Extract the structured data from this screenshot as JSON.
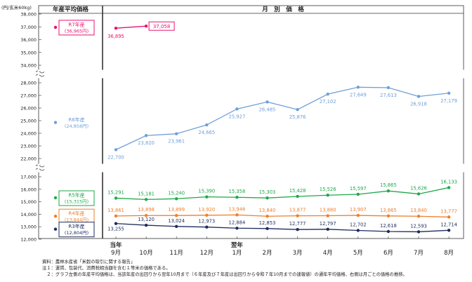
{
  "chart_data": {
    "type": "line",
    "ylabel": "(円/玄米60kg)",
    "left_header": "年産平均価格",
    "right_header": "月　別　価　格",
    "categories": [
      "9月",
      "10月",
      "11月",
      "12月",
      "1月",
      "2月",
      "3月",
      "4月",
      "5月",
      "6月",
      "7月",
      "8月"
    ],
    "year_labels": [
      {
        "text": "当年",
        "category_index": 0
      },
      {
        "text": "翌年",
        "category_index": 4
      }
    ],
    "axis_breaks": [
      {
        "ylim": [
          34000,
          38000
        ],
        "ticks": [
          34000,
          35000,
          36000,
          37000,
          38000
        ]
      },
      {
        "ylim": [
          22000,
          28000
        ],
        "ticks": [
          22000,
          23000,
          24000,
          25000,
          26000,
          27000,
          28000
        ]
      },
      {
        "ylim": [
          12000,
          17000
        ],
        "ticks": [
          12000,
          13000,
          14000,
          15000,
          16000,
          17000
        ]
      }
    ],
    "tick_labels": {
      "38000": "38,000",
      "37000": "37,000",
      "36000": "36,000",
      "35000": "35,000",
      "34000": "34,000",
      "28000": "28,000",
      "27000": "27,000",
      "26000": "26,000",
      "25000": "25,000",
      "24000": "24,000",
      "23000": "23,000",
      "22000": "22,000",
      "17000": "17,000",
      "16000": "16,000",
      "15000": "15,000",
      "14000": "14,000",
      "13000": "13,000",
      "12000": "12,000"
    },
    "series": [
      {
        "name": "R7年産",
        "avg_label": "(36,965円)",
        "avg": 36965,
        "color": "#e8136f",
        "values": [
          36895,
          37058,
          null,
          null,
          null,
          null,
          null,
          null,
          null,
          null,
          null,
          null
        ],
        "labels": [
          "36,895",
          "37,058",
          "",
          "",
          "",
          "",
          "",
          "",
          "",
          "",
          "",
          ""
        ],
        "boxed_labels": [
          1
        ]
      },
      {
        "name": "R6年産",
        "avg_label": "(24,858円)",
        "avg": 24858,
        "color": "#6f9fd8",
        "values": [
          22700,
          23820,
          23961,
          24665,
          25927,
          26485,
          25876,
          27102,
          27649,
          27613,
          26918,
          27179
        ],
        "labels": [
          "22,700",
          "23,820",
          "23,961",
          "24,665",
          "25,927",
          "26,485",
          "25,876",
          "27,102",
          "27,649",
          "27,613",
          "26,918",
          "27,179"
        ]
      },
      {
        "name": "R5年産",
        "avg_label": "(15,315円)",
        "avg": 15315,
        "color": "#1fa84a",
        "values": [
          15291,
          15181,
          15240,
          15390,
          15358,
          15303,
          15428,
          15526,
          15597,
          15865,
          15626,
          16133
        ],
        "labels": [
          "15,291",
          "15,181",
          "15,240",
          "15,390",
          "15,358",
          "15,303",
          "15,428",
          "15,526",
          "15,597",
          "15,865",
          "15,626",
          "16,133"
        ]
      },
      {
        "name": "R4年産",
        "avg_label": "(13,844円)",
        "avg": 13844,
        "color": "#ee7f2d",
        "values": [
          13861,
          13898,
          13899,
          13920,
          13946,
          13840,
          13877,
          13880,
          13907,
          13865,
          13840,
          13777
        ],
        "labels": [
          "13,861",
          "13,898",
          "13,899",
          "13,920",
          "13,946",
          "13,840",
          "13,877",
          "13,880",
          "13,907",
          "13,865",
          "13,840",
          "13,777"
        ]
      },
      {
        "name": "R3年産",
        "avg_label": "(12,804円)",
        "avg": 12804,
        "color": "#1f2c5c",
        "values": [
          13255,
          13120,
          13024,
          12973,
          12884,
          12853,
          12777,
          12797,
          12702,
          12618,
          12593,
          12714
        ],
        "labels": [
          "13,255",
          "13,120",
          "13,024",
          "12,973",
          "12,884",
          "12,853",
          "12,777",
          "12,797",
          "12,702",
          "12,618",
          "12,593",
          "12,714"
        ]
      }
    ],
    "grid": false,
    "legend": "left-column"
  },
  "notes": {
    "source": "資料：農林水産省「米穀の取引に関する報告」",
    "note1": "注１：運賃、包装代、消費税相当額を含む１等米の価格である。",
    "note2": "　２：グラフ左側の年産平均価格は、当該年産の出回りから翌年10月まで（６年産及び７年産は出回りから令和７年10月までの速報値）の通年平均価格、右側は月ごとの価格の推移。"
  }
}
